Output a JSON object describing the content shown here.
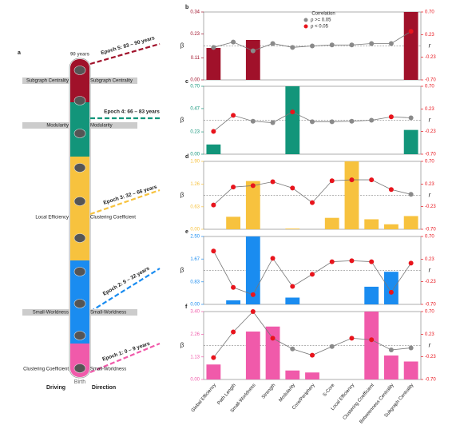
{
  "panel_a": {
    "label": "a",
    "top_label": "90 years",
    "bottom_label": "Birth",
    "left_heading": "Driving",
    "right_heading": "Direction",
    "epochs": [
      {
        "label": "Epoch 5: 83 – 90 years",
        "color": "#a0112a"
      },
      {
        "label": "Epoch 4: 66 – 83 years",
        "color": "#12957a"
      },
      {
        "label": "Epoch 3: 32 – 66 years",
        "color": "#f7c23e"
      },
      {
        "label": "Epoch 2: 9 – 32 years",
        "color": "#1a8cf0"
      },
      {
        "label": "Epoch 1: 0 – 9 years",
        "color": "#f05aaa"
      }
    ],
    "side_labels": [
      {
        "left": "Subgraph Centrality",
        "right": "Subgraph Centrality"
      },
      {
        "left": "Modularity",
        "right": "Modularity"
      },
      {
        "left": "Local Efficiency",
        "right": "Clustering Coefficient"
      },
      {
        "left": "Small-Worldness",
        "right": "Small-Worldness"
      },
      {
        "left": "Clustering Coefficient",
        "right": "Small-Worldness"
      }
    ]
  },
  "chart_data": [
    {
      "type": "bar",
      "label": "b",
      "ylabel": "β",
      "y2label": "r",
      "color": "#a0112a",
      "legend": {
        "title": "Correlation",
        "entries": [
          {
            "label": "ρ >= 0.05",
            "color": "#8a8a8a"
          },
          {
            "label": "ρ < 0.05",
            "color": "#e8141c"
          }
        ]
      },
      "values": [
        0.16,
        0,
        0.2,
        0,
        0,
        0,
        0,
        0,
        0,
        0,
        0.34
      ],
      "ylim": [
        0,
        0.34
      ],
      "yticks": [
        {
          "value": 0,
          "label": "0.00"
        },
        0.11,
        0.23,
        0.34
      ],
      "r_values": [
        -0.03,
        0.08,
        -0.1,
        0.05,
        -0.03,
        0,
        0.02,
        0.02,
        0.05,
        0.05,
        0.3
      ],
      "point_colors": [
        "#8a8a8a",
        "#8a8a8a",
        "#8a8a8a",
        "#8a8a8a",
        "#8a8a8a",
        "#8a8a8a",
        "#8a8a8a",
        "#8a8a8a",
        "#8a8a8a",
        "#8a8a8a",
        "#e8141c"
      ],
      "y2lim": [
        -0.7,
        0.7
      ],
      "y2ticks": [
        {
          "value": -0.7,
          "label": "-0.70"
        },
        -0.23,
        0.23,
        {
          "value": 0.7,
          "label": "0.70"
        }
      ]
    },
    {
      "type": "bar",
      "label": "c",
      "ylabel": "β",
      "y2label": "r",
      "color": "#12957a",
      "values": [
        0.1,
        0,
        0,
        0,
        0.7,
        0,
        0,
        0,
        0,
        0,
        0.25
      ],
      "ylim": [
        0,
        0.7
      ],
      "yticks": [
        {
          "value": 0,
          "label": "0.00"
        },
        0.23,
        0.47,
        {
          "value": 0.7,
          "label": "0.70"
        }
      ],
      "r_values": [
        -0.23,
        0.1,
        -0.02,
        -0.05,
        0.17,
        -0.03,
        -0.03,
        -0.02,
        0,
        0.07,
        0.05
      ],
      "point_colors": [
        "#e8141c",
        "#e8141c",
        "#8a8a8a",
        "#8a8a8a",
        "#e8141c",
        "#8a8a8a",
        "#8a8a8a",
        "#8a8a8a",
        "#8a8a8a",
        "#e8141c",
        "#8a8a8a"
      ],
      "y2lim": [
        -0.7,
        0.7
      ],
      "y2ticks": [
        {
          "value": -0.7,
          "label": "-0.70"
        },
        -0.23,
        0.23,
        {
          "value": 0.7,
          "label": "0.70"
        }
      ]
    },
    {
      "type": "bar",
      "label": "d",
      "ylabel": "β",
      "y2label": "r",
      "color": "#f7c23e",
      "values": [
        0,
        0.35,
        1.35,
        0,
        0.02,
        0,
        0.32,
        1.9,
        0.28,
        0.14,
        0.37
      ],
      "ylim": [
        0,
        1.9
      ],
      "yticks": [
        {
          "value": 0,
          "label": "0.00"
        },
        0.63,
        1.26,
        {
          "value": 1.9,
          "label": "1.90"
        }
      ],
      "r_values": [
        -0.2,
        0.17,
        0.2,
        0.28,
        0.15,
        -0.15,
        0.3,
        0.32,
        0.32,
        0.12,
        0.02
      ],
      "point_colors": [
        "#e8141c",
        "#e8141c",
        "#e8141c",
        "#e8141c",
        "#e8141c",
        "#e8141c",
        "#e8141c",
        "#e8141c",
        "#e8141c",
        "#e8141c",
        "#8a8a8a"
      ],
      "y2lim": [
        -0.7,
        0.7
      ],
      "y2ticks": [
        {
          "value": -0.7,
          "label": "-0.70"
        },
        -0.23,
        0.23,
        {
          "value": 0.7,
          "label": "0.70"
        }
      ]
    },
    {
      "type": "bar",
      "label": "e",
      "ylabel": "β",
      "y2label": "r",
      "color": "#1a8cf0",
      "values": [
        0,
        0.15,
        2.5,
        0,
        0.25,
        0,
        0,
        0,
        0.65,
        1.2,
        0
      ],
      "ylim": [
        0,
        2.5
      ],
      "yticks": [
        {
          "value": 0,
          "label": "0.00"
        },
        0.83,
        1.67,
        {
          "value": 2.5,
          "label": "2.50"
        }
      ],
      "r_values": [
        0.4,
        -0.35,
        -0.5,
        0.25,
        -0.33,
        -0.08,
        0.18,
        0.2,
        0.18,
        -0.45,
        0.15
      ],
      "point_colors": [
        "#e8141c",
        "#e8141c",
        "#e8141c",
        "#e8141c",
        "#e8141c",
        "#e8141c",
        "#e8141c",
        "#e8141c",
        "#e8141c",
        "#e8141c",
        "#e8141c"
      ],
      "y2lim": [
        -0.7,
        0.7
      ],
      "y2ticks": [
        {
          "value": -0.7,
          "label": "-0.70"
        },
        -0.23,
        0.23,
        {
          "value": 0.7,
          "label": "0.70"
        }
      ]
    },
    {
      "type": "bar",
      "label": "f",
      "ylabel": "β",
      "y2label": "r",
      "color": "#f05aaa",
      "categories": [
        "Global Efficiency",
        "Path Length",
        "Small-Worldness",
        "Strength",
        "Modularity",
        "Core/Periphery",
        "S-Core",
        "Local Efficiency",
        "Clustering Coefficient",
        "Betweenness Centrality",
        "Subgraph Centrality"
      ],
      "values": [
        0.75,
        0,
        2.4,
        2.65,
        0.45,
        0.35,
        0,
        0,
        3.4,
        1.2,
        0.9
      ],
      "ylim": [
        0,
        3.4
      ],
      "yticks": [
        {
          "value": 0,
          "label": "0.00"
        },
        1.13,
        2.26,
        {
          "value": 3.4,
          "label": "3.40"
        }
      ],
      "r_values": [
        -0.25,
        0.28,
        0.7,
        0.15,
        -0.07,
        -0.2,
        -0.02,
        0.15,
        0.12,
        -0.09,
        -0.05
      ],
      "point_colors": [
        "#e8141c",
        "#e8141c",
        "#e8141c",
        "#e8141c",
        "#8a8a8a",
        "#e8141c",
        "#8a8a8a",
        "#e8141c",
        "#e8141c",
        "#8a8a8a",
        "#8a8a8a"
      ],
      "y2lim": [
        -0.7,
        0.7
      ],
      "y2ticks": [
        {
          "value": -0.7,
          "label": "-0.70"
        },
        -0.23,
        0.23,
        {
          "value": 0.7,
          "label": "0.70"
        }
      ]
    }
  ]
}
